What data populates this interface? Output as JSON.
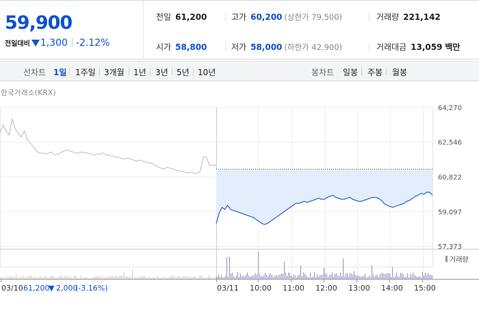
{
  "quote": {
    "price": "59,900",
    "change_label": "전일대비",
    "change_value": "1,300",
    "change_rate": "-2.12%"
  },
  "stats": {
    "prev_close": {
      "label": "전일",
      "value": "61,200"
    },
    "high": {
      "label": "고가",
      "value": "60,200",
      "note": "(상한가 79,500)"
    },
    "volume": {
      "label": "거래량",
      "value": "221,142"
    },
    "open": {
      "label": "시가",
      "value": "58,800"
    },
    "low": {
      "label": "저가",
      "value": "58,000",
      "note": "(하한가 42,900)"
    },
    "trade_amount": {
      "label": "거래대금",
      "value": "13,059",
      "unit": "백만"
    }
  },
  "tabs": {
    "line_label": "선차트",
    "line_periods": [
      "1일",
      "1주일",
      "3개월",
      "1년",
      "3년",
      "5년",
      "10년"
    ],
    "active": "1일",
    "candle_label": "봉차트",
    "candle_periods": [
      "일봉",
      "주봉",
      "월봉"
    ]
  },
  "chart": {
    "source": "한국거래소(KRX)",
    "volume_legend": "거래량",
    "prev_day_label": "03/10",
    "prev_day_close": "61,200",
    "prev_day_change": "2,000",
    "prev_day_rate": "(-3.16%)",
    "colors": {
      "accent": "#2e6bd6",
      "fill": "#e4edfb",
      "prev": "#bbbbbb",
      "volume": "#9b8ac4"
    }
  },
  "chart_data": {
    "type": "line",
    "y_ticks": [
      64270,
      62546,
      60822,
      59097,
      57373
    ],
    "ylim": [
      57373,
      64270
    ],
    "x_ticks": [
      "03/10",
      "03/11",
      "10:00",
      "11:00",
      "12:00",
      "13:00",
      "14:00",
      "15:00"
    ],
    "reference_line": 61200,
    "series": [
      {
        "day": "03/10",
        "values": [
          63000,
          63400,
          63100,
          62900,
          63700,
          63200,
          63000,
          62800,
          63100,
          62700,
          62500,
          62300,
          62100,
          62000,
          62000,
          61950,
          62000,
          62050,
          61900,
          61950,
          62000,
          62100,
          62150,
          62100,
          62050,
          62000,
          62000,
          62050,
          62000,
          62000,
          61950,
          61900,
          61950,
          61950,
          62000,
          61900,
          61900,
          61850,
          61800,
          61800,
          61750,
          61700,
          61750,
          61700,
          61650,
          61600,
          61650,
          61600,
          61550,
          61500,
          61500,
          61400,
          61300,
          61250,
          61200,
          61300,
          61250,
          61200,
          61150,
          61100,
          61100,
          61050,
          61000,
          61050,
          61000,
          61000,
          61100,
          61800,
          61800,
          61400
        ]
      },
      {
        "day": "03/11",
        "values": [
          58500,
          59000,
          59300,
          59200,
          59400,
          59200,
          59150,
          59100,
          59050,
          59000,
          58950,
          58900,
          58850,
          58800,
          58700,
          58600,
          58500,
          58450,
          58500,
          58600,
          58700,
          58800,
          58900,
          59000,
          59100,
          59200,
          59300,
          59400,
          59500,
          59500,
          59550,
          59600,
          59550,
          59600,
          59650,
          59700,
          59750,
          59700,
          59700,
          59800,
          59850,
          59900,
          59800,
          59750,
          59700,
          59700,
          59750,
          59800,
          59700,
          59650,
          59600,
          59600,
          59650,
          59700,
          59750,
          59800,
          59800,
          59750,
          59650,
          59500,
          59400,
          59350,
          59300,
          59350,
          59400,
          59450,
          59500,
          59600,
          59650,
          59750,
          59850,
          59900,
          60000,
          59950,
          60050,
          60050,
          59900
        ]
      }
    ]
  }
}
